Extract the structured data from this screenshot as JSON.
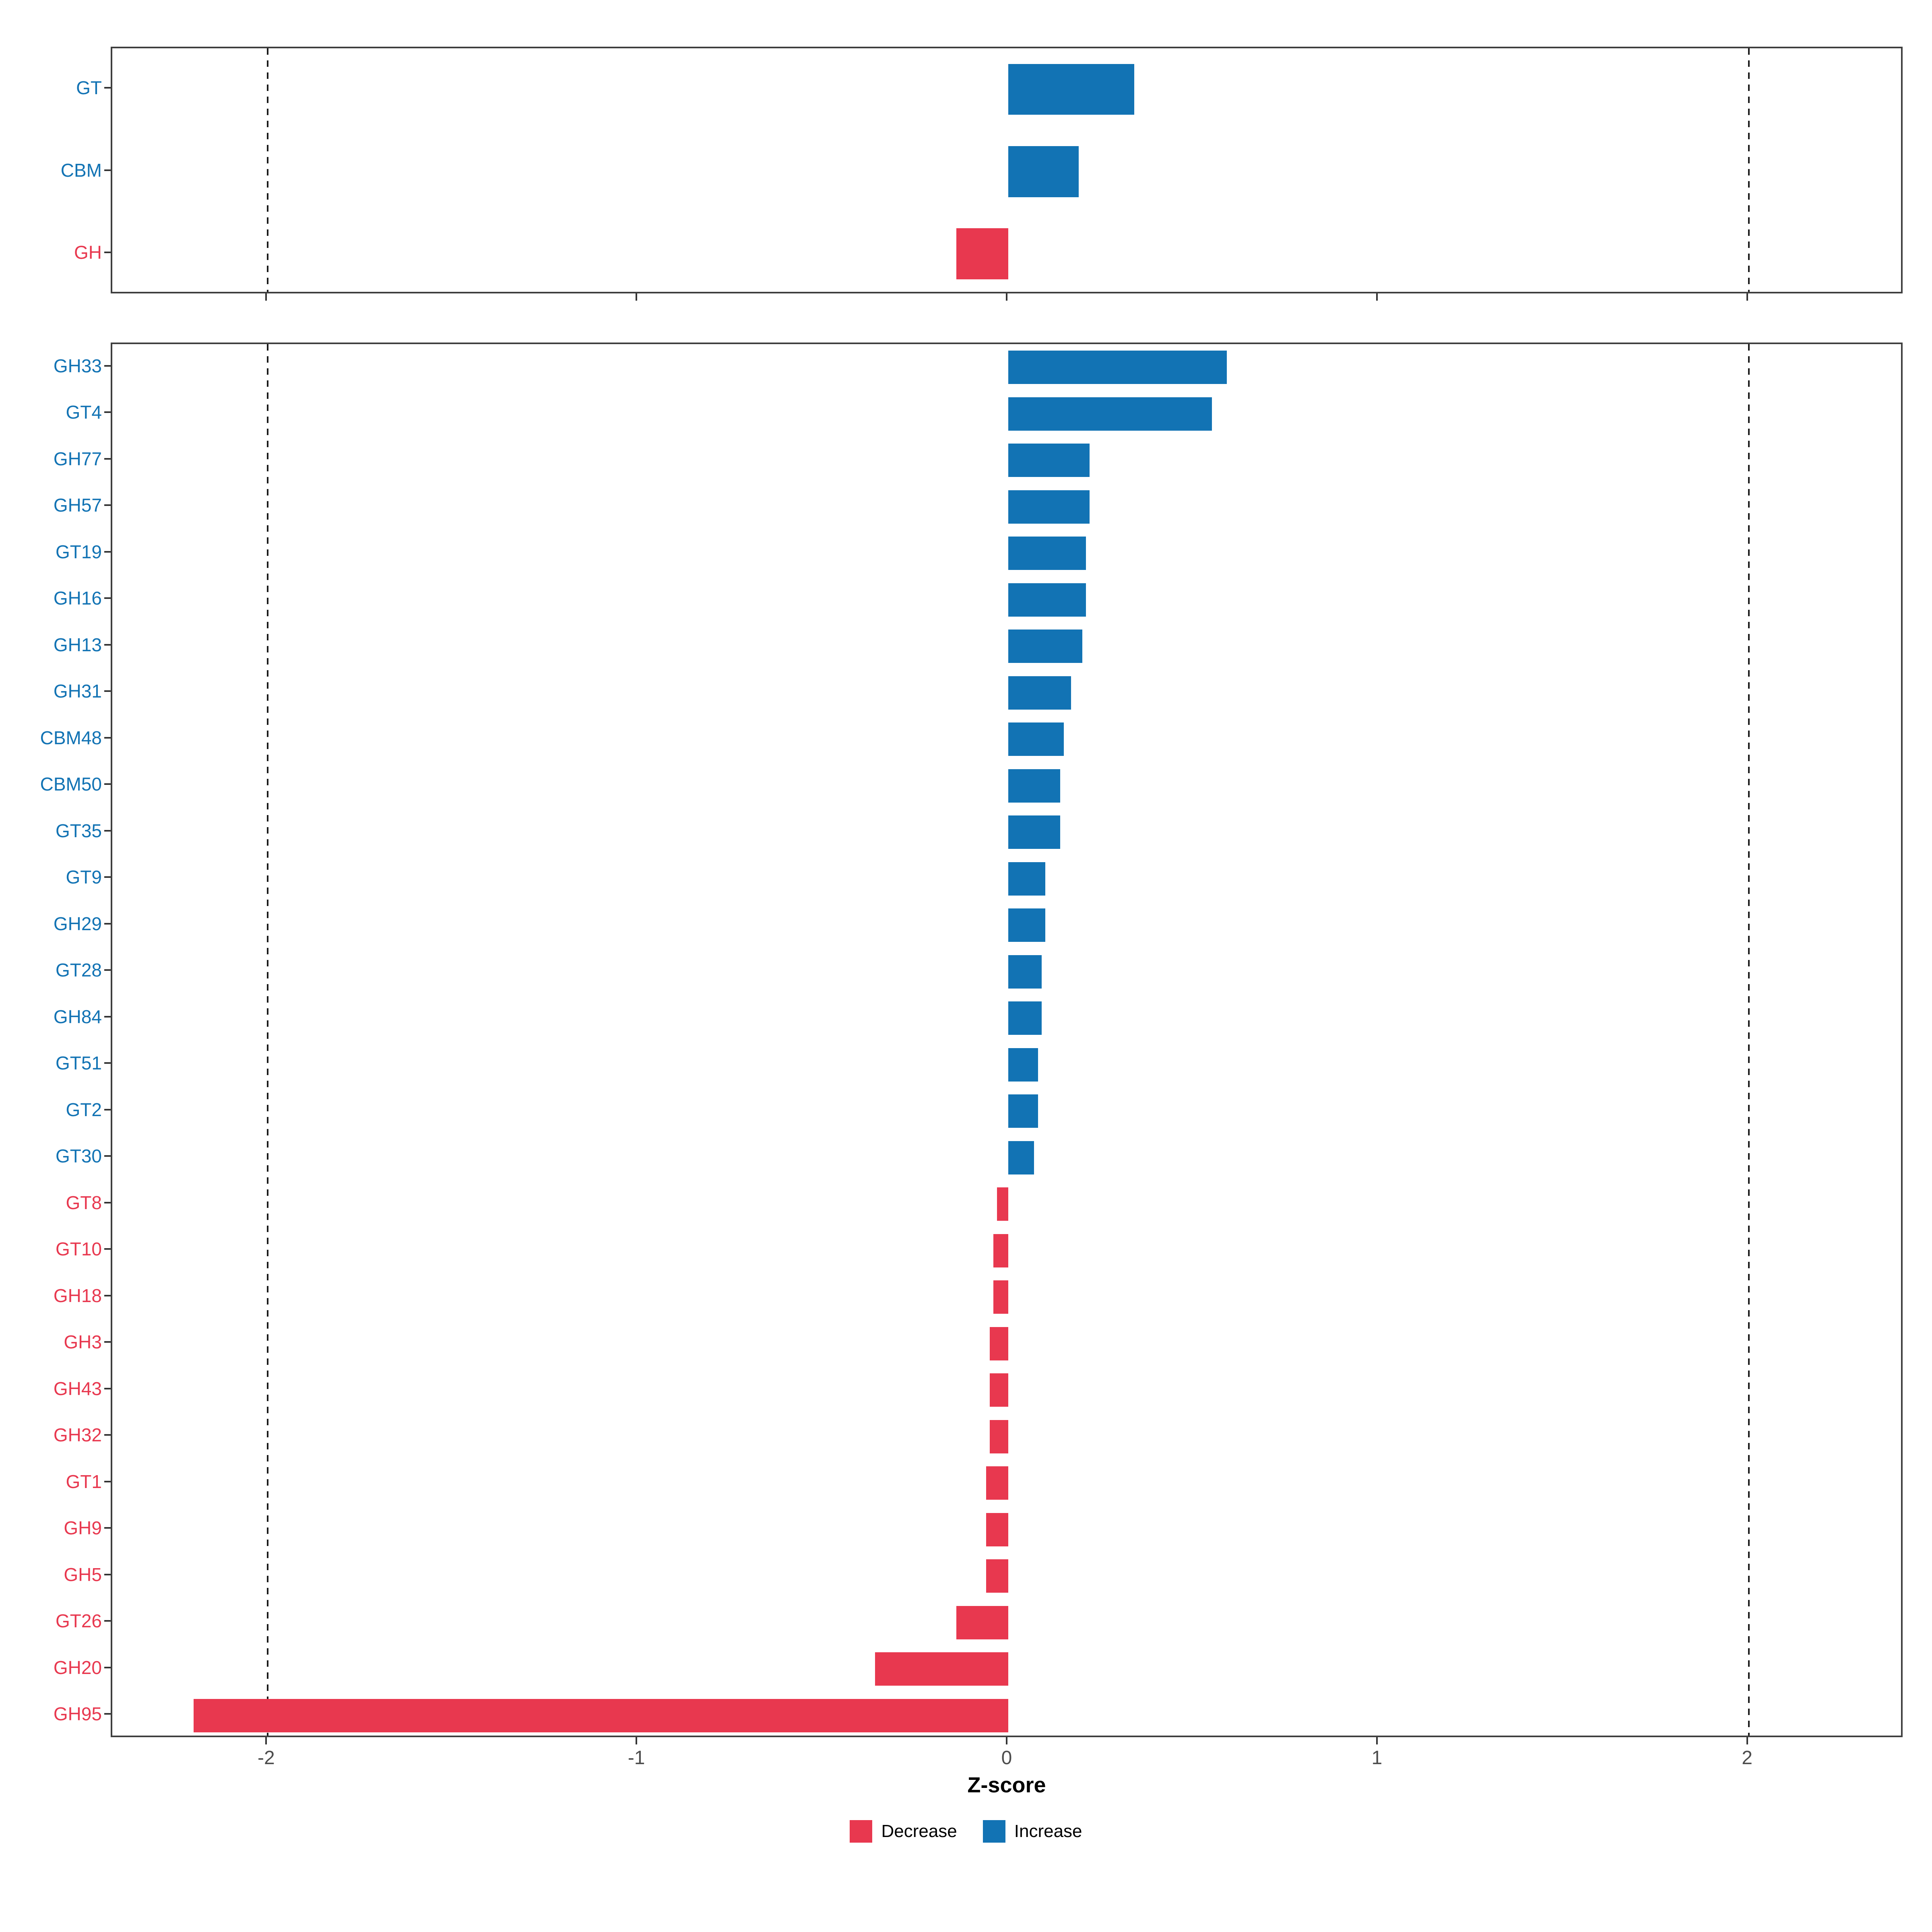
{
  "chart_data": [
    {
      "type": "bar",
      "orientation": "horizontal",
      "panel": "families",
      "categories": [
        "GT",
        "CBM",
        "GH"
      ],
      "values": [
        0.34,
        0.19,
        -0.14
      ]
    },
    {
      "type": "bar",
      "orientation": "horizontal",
      "panel": "subfamilies",
      "categories": [
        "GH33",
        "GT4",
        "GH77",
        "GH57",
        "GT19",
        "GH16",
        "GH13",
        "GH31",
        "CBM48",
        "CBM50",
        "GT35",
        "GT9",
        "GH29",
        "GT28",
        "GH84",
        "GT51",
        "GT2",
        "GT30",
        "GT8",
        "GT10",
        "GH18",
        "GH3",
        "GH43",
        "GH32",
        "GT1",
        "GH9",
        "GH5",
        "GT26",
        "GH20",
        "GH95"
      ],
      "values": [
        0.59,
        0.55,
        0.22,
        0.22,
        0.21,
        0.21,
        0.2,
        0.17,
        0.15,
        0.14,
        0.14,
        0.1,
        0.1,
        0.09,
        0.09,
        0.08,
        0.08,
        0.07,
        -0.03,
        -0.04,
        -0.04,
        -0.05,
        -0.05,
        -0.05,
        -0.06,
        -0.06,
        -0.06,
        -0.14,
        -0.36,
        -2.2
      ]
    }
  ],
  "axis": {
    "label": "Z-score",
    "ticks": [
      -2,
      -1,
      0,
      1,
      2
    ],
    "xlim": [
      -2.42,
      2.42
    ],
    "dashed_lines": [
      -2,
      2
    ],
    "grid": "off"
  },
  "legend": {
    "position": "bottom",
    "items": [
      {
        "label": "Decrease",
        "color": "#E8384F"
      },
      {
        "label": "Increase",
        "color": "#1273B4"
      }
    ]
  },
  "colors": {
    "decrease": "#E8384F",
    "increase": "#1273B4",
    "tick_label": "#4d4d4d",
    "panel_border": "#3f3f3f"
  }
}
